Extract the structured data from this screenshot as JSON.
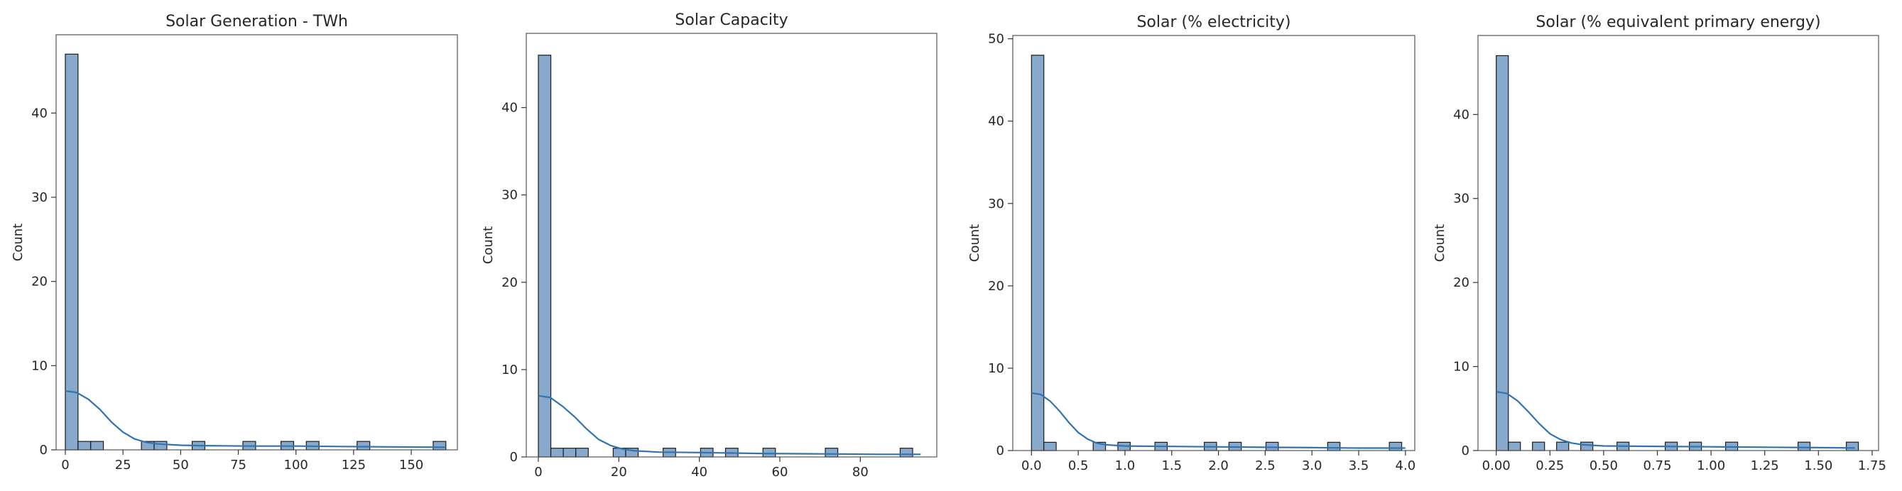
{
  "chart_data": [
    {
      "type": "bar",
      "subtype": "histogram-with-kde",
      "title": "Solar Generation - TWh",
      "xlabel": "",
      "ylabel": "Count",
      "xlim": [
        -4,
        170
      ],
      "ylim": [
        0,
        49.3
      ],
      "xticks": [
        0,
        25,
        50,
        75,
        100,
        125,
        150
      ],
      "yticks": [
        0,
        10,
        20,
        30,
        40
      ],
      "xtick_labels": [
        "0",
        "25",
        "50",
        "75",
        "100",
        "125",
        "150"
      ],
      "ytick_labels": [
        "0",
        "10",
        "20",
        "30",
        "40"
      ],
      "bins": {
        "start": 0,
        "width": 5.5,
        "counts": [
          47,
          1,
          1,
          0,
          0,
          0,
          1,
          1,
          0,
          0,
          1,
          0,
          0,
          0,
          1,
          0,
          0,
          1,
          0,
          1,
          0,
          0,
          0,
          1,
          0,
          0,
          0,
          0,
          0,
          1
        ]
      },
      "kde": {
        "x": [
          0,
          5,
          10,
          15,
          20,
          25,
          30,
          35,
          40,
          50,
          60,
          80,
          100,
          120,
          140,
          165
        ],
        "y": [
          7,
          6.8,
          6,
          4.8,
          3.3,
          2.1,
          1.3,
          0.9,
          0.7,
          0.55,
          0.5,
          0.45,
          0.45,
          0.4,
          0.35,
          0.3
        ]
      },
      "grid": false,
      "bar_color": "#87a9cc",
      "line_color": "#2f74b1"
    },
    {
      "type": "bar",
      "subtype": "histogram-with-kde",
      "title": "Solar Capacity",
      "xlabel": "",
      "ylabel": "Count",
      "xlim": [
        -3,
        99
      ],
      "ylim": [
        0,
        48.5
      ],
      "xticks": [
        0,
        20,
        40,
        60,
        80
      ],
      "yticks": [
        0,
        10,
        20,
        30,
        40
      ],
      "xtick_labels": [
        "0",
        "20",
        "40",
        "60",
        "80"
      ],
      "ytick_labels": [
        "0",
        "10",
        "20",
        "30",
        "40"
      ],
      "bins": {
        "start": 0,
        "width": 3.1,
        "counts": [
          46,
          1,
          1,
          1,
          0,
          0,
          1,
          1,
          0,
          0,
          1,
          0,
          0,
          1,
          0,
          1,
          0,
          0,
          1,
          0,
          0,
          0,
          0,
          1,
          0,
          0,
          0,
          0,
          0,
          1
        ]
      },
      "kde": {
        "x": [
          0,
          3,
          6,
          9,
          12,
          15,
          18,
          21,
          24,
          30,
          40,
          55,
          70,
          85,
          95
        ],
        "y": [
          7,
          6.8,
          5.8,
          4.6,
          3.2,
          2,
          1.3,
          0.9,
          0.7,
          0.55,
          0.5,
          0.4,
          0.35,
          0.3,
          0.3
        ]
      },
      "grid": false,
      "bar_color": "#87a9cc",
      "line_color": "#2f74b1"
    },
    {
      "type": "bar",
      "subtype": "histogram-with-kde",
      "title": "Solar (% electricity)",
      "xlabel": "",
      "ylabel": "Count",
      "xlim": [
        -0.2,
        4.1
      ],
      "ylim": [
        0,
        50.4
      ],
      "xticks": [
        0,
        0.5,
        1,
        1.5,
        2,
        2.5,
        3,
        3.5,
        4
      ],
      "yticks": [
        0,
        10,
        20,
        30,
        40,
        50
      ],
      "xtick_labels": [
        "0.0",
        "0.5",
        "1.0",
        "1.5",
        "2.0",
        "2.5",
        "3.0",
        "3.5",
        "4.0"
      ],
      "ytick_labels": [
        "0",
        "10",
        "20",
        "30",
        "40",
        "50"
      ],
      "bins": {
        "start": 0,
        "width": 0.132,
        "counts": [
          48,
          1,
          0,
          0,
          0,
          1,
          0,
          1,
          0,
          0,
          1,
          0,
          0,
          0,
          1,
          0,
          1,
          0,
          0,
          1,
          0,
          0,
          0,
          0,
          1,
          0,
          0,
          0,
          0,
          1
        ]
      },
      "kde": {
        "x": [
          0,
          0.1,
          0.2,
          0.3,
          0.4,
          0.5,
          0.6,
          0.7,
          0.8,
          1,
          1.5,
          2,
          2.5,
          3,
          3.5,
          4
        ],
        "y": [
          7,
          6.8,
          6,
          4.8,
          3.4,
          2.2,
          1.4,
          0.9,
          0.7,
          0.55,
          0.5,
          0.45,
          0.4,
          0.35,
          0.3,
          0.3
        ]
      },
      "grid": false,
      "bar_color": "#87a9cc",
      "line_color": "#2f74b1"
    },
    {
      "type": "bar",
      "subtype": "histogram-with-kde",
      "title": "Solar (% equivalent primary energy)",
      "xlabel": "",
      "ylabel": "Count",
      "xlim": [
        -0.085,
        1.78
      ],
      "ylim": [
        0,
        49.4
      ],
      "xticks": [
        0,
        0.25,
        0.5,
        0.75,
        1,
        1.25,
        1.5,
        1.75
      ],
      "yticks": [
        0,
        10,
        20,
        30,
        40
      ],
      "xtick_labels": [
        "0.00",
        "0.25",
        "0.50",
        "0.75",
        "1.00",
        "1.25",
        "1.50",
        "1.75"
      ],
      "ytick_labels": [
        "0",
        "10",
        "20",
        "30",
        "40"
      ],
      "bins": {
        "start": 0,
        "width": 0.0562,
        "counts": [
          47,
          1,
          0,
          1,
          0,
          1,
          0,
          1,
          0,
          0,
          1,
          0,
          0,
          0,
          1,
          0,
          1,
          0,
          0,
          1,
          0,
          0,
          0,
          0,
          0,
          1,
          0,
          0,
          0,
          1
        ]
      },
      "kde": {
        "x": [
          0,
          0.05,
          0.1,
          0.15,
          0.2,
          0.25,
          0.3,
          0.35,
          0.4,
          0.5,
          0.75,
          1,
          1.25,
          1.5,
          1.67
        ],
        "y": [
          7,
          6.8,
          5.9,
          4.6,
          3.2,
          2,
          1.3,
          0.9,
          0.7,
          0.55,
          0.5,
          0.45,
          0.4,
          0.35,
          0.3
        ]
      },
      "grid": false,
      "bar_color": "#87a9cc",
      "line_color": "#2f74b1"
    }
  ]
}
